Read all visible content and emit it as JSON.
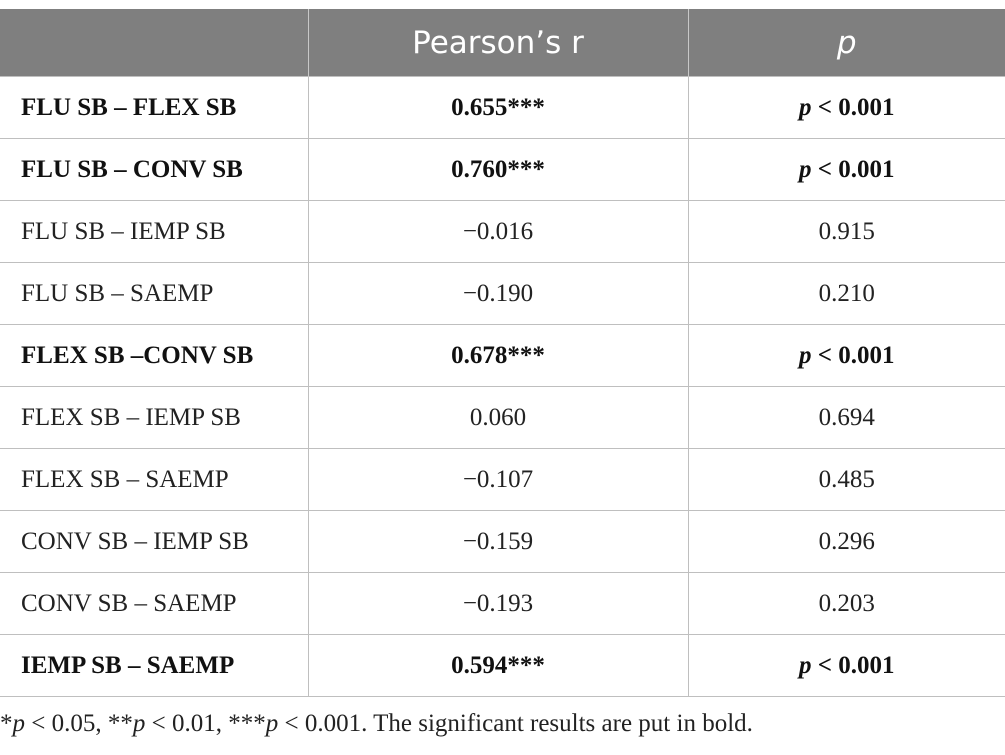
{
  "table": {
    "headers": [
      "",
      "Pearson’s r",
      "p"
    ],
    "rows": [
      {
        "pair": "FLU SB – FLEX SB",
        "r": "0.655***",
        "p_prefix": "p",
        "p_value": " < 0.001",
        "bold": true
      },
      {
        "pair": "FLU SB – CONV SB",
        "r": "0.760***",
        "p_prefix": "p",
        "p_value": " < 0.001",
        "bold": true
      },
      {
        "pair": "FLU SB – IEMP SB",
        "r": "−0.016",
        "p_prefix": "",
        "p_value": "0.915",
        "bold": false
      },
      {
        "pair": "FLU SB – SAEMP",
        "r": "−0.190",
        "p_prefix": "",
        "p_value": "0.210",
        "bold": false
      },
      {
        "pair": "FLEX SB –CONV SB",
        "r": "0.678***",
        "p_prefix": "p",
        "p_value": " < 0.001",
        "bold": true
      },
      {
        "pair": "FLEX SB – IEMP SB",
        "r": "0.060",
        "p_prefix": "",
        "p_value": "0.694",
        "bold": false
      },
      {
        "pair": "FLEX SB – SAEMP",
        "r": "−0.107",
        "p_prefix": "",
        "p_value": "0.485",
        "bold": false
      },
      {
        "pair": "CONV SB – IEMP SB",
        "r": "−0.159",
        "p_prefix": "",
        "p_value": "0.296",
        "bold": false
      },
      {
        "pair": "CONV SB – SAEMP",
        "r": "−0.193",
        "p_prefix": "",
        "p_value": "0.203",
        "bold": false
      },
      {
        "pair": "IEMP SB – SAEMP",
        "r": "0.594***",
        "p_prefix": "p",
        "p_value": " < 0.001",
        "bold": true
      }
    ]
  },
  "footnote": {
    "s1": "*",
    "p1": "p",
    "t1": " < 0.05, **",
    "p2": "p",
    "t2": " < 0.01, ***",
    "p3": "p",
    "t3": " < 0.001. The significant results are put in bold."
  },
  "colors": {
    "header_bg": "#7f7f7f",
    "header_text": "#ffffff",
    "grid": "#bfbfbf"
  }
}
